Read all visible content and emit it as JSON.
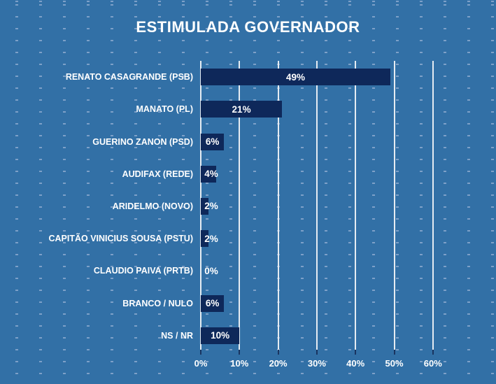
{
  "colors": {
    "background": "#3270a6",
    "dot": "#7da0c8",
    "bar": "#0e285a",
    "gridline": "#e6ecf2",
    "tick": "#1a3560",
    "text": "#ffffff"
  },
  "chart_data": {
    "type": "bar",
    "orientation": "horizontal",
    "title": "ESTIMULADA GOVERNADOR",
    "categories": [
      "RENATO CASAGRANDE (PSB)",
      "MANATO (PL)",
      "GUERINO ZANON (PSD)",
      "AUDIFAX (REDE)",
      "ARIDELMO (NOVO)",
      "CAPITÃO VINICIUS SOUSA (PSTU)",
      "CLAUDIO PAIVA (PRTB)",
      "BRANCO / NULO",
      "NS / NR"
    ],
    "values": [
      49,
      21,
      6,
      4,
      2,
      2,
      0,
      6,
      10
    ],
    "value_labels": [
      "49%",
      "21%",
      "6%",
      "4%",
      "2%",
      "2%",
      "0%",
      "6%",
      "10%"
    ],
    "x_axis": {
      "tick_labels": [
        "0%",
        "10%",
        "20%",
        "30%",
        "40%",
        "50%",
        "60%"
      ],
      "tick_values": [
        0,
        10,
        20,
        30,
        40,
        50,
        60
      ],
      "min": 0,
      "max": 60
    },
    "grid": "vertical",
    "legend": "none",
    "xlabel": "",
    "ylabel": ""
  }
}
